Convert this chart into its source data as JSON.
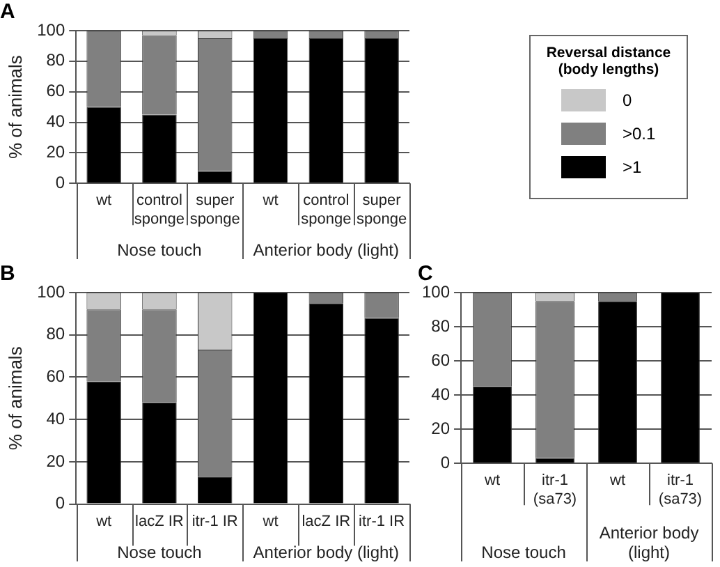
{
  "chart_data": [
    {
      "type": "bar",
      "title": "A",
      "ylabel": "% of animals",
      "stacked": true,
      "grid": "y",
      "legend": "right",
      "legend_title": "Reversal distance (body lengths)",
      "categories": [
        "wt",
        "control sponge",
        "super sponge",
        "wt",
        "control sponge",
        "super sponge"
      ],
      "ylim": [
        0,
        100
      ],
      "yticks": [
        0,
        20,
        40,
        60,
        80,
        100
      ],
      "annotations": [
        "Nose touch",
        "Anterior body (light)"
      ],
      "series": [
        {
          "name": ">1",
          "color": "#000000",
          "values": [
            50,
            45,
            8,
            95,
            95,
            95
          ]
        },
        {
          "name": ">0.1",
          "color": "#808080",
          "values": [
            50,
            52,
            87,
            5,
            5,
            5
          ]
        },
        {
          "name": "0",
          "color": "#c8c8c8",
          "values": [
            0,
            3,
            5,
            0,
            0,
            0
          ]
        }
      ]
    },
    {
      "type": "bar",
      "title": "B",
      "ylabel": "% of animals",
      "stacked": true,
      "grid": "y",
      "categories": [
        "wt",
        "lacZ IR",
        "itr-1 IR",
        "wt",
        "lacZ IR",
        "itr-1 IR"
      ],
      "ylim": [
        0,
        100
      ],
      "yticks": [
        0,
        20,
        40,
        60,
        80,
        100
      ],
      "annotations": [
        "Nose touch",
        "Anterior body (light)"
      ],
      "series": [
        {
          "color": "#000000",
          "values": [
            58,
            48,
            13,
            100,
            95,
            88
          ]
        },
        {
          "color": "#808080",
          "values": [
            34,
            44,
            60,
            0,
            5,
            12
          ]
        },
        {
          "color": "#c8c8c8",
          "values": [
            8,
            8,
            27,
            0,
            0,
            0
          ]
        }
      ]
    },
    {
      "type": "bar",
      "title": "C",
      "stacked": true,
      "grid": "y",
      "categories": [
        "wt",
        "itr-1 (sa73)",
        "wt",
        "itr-1 (sa73)"
      ],
      "ylim": [
        0,
        100
      ],
      "yticks": [
        0,
        20,
        40,
        60,
        80,
        100
      ],
      "annotations": [
        "Nose touch",
        "Anterior body (light)"
      ],
      "series": [
        {
          "color": "#000000",
          "values": [
            45,
            3,
            95,
            100
          ]
        },
        {
          "color": "#808080",
          "values": [
            55,
            92,
            5,
            0
          ]
        },
        {
          "color": "#c8c8c8",
          "values": [
            0,
            5,
            0,
            0
          ]
        }
      ]
    }
  ]
}
